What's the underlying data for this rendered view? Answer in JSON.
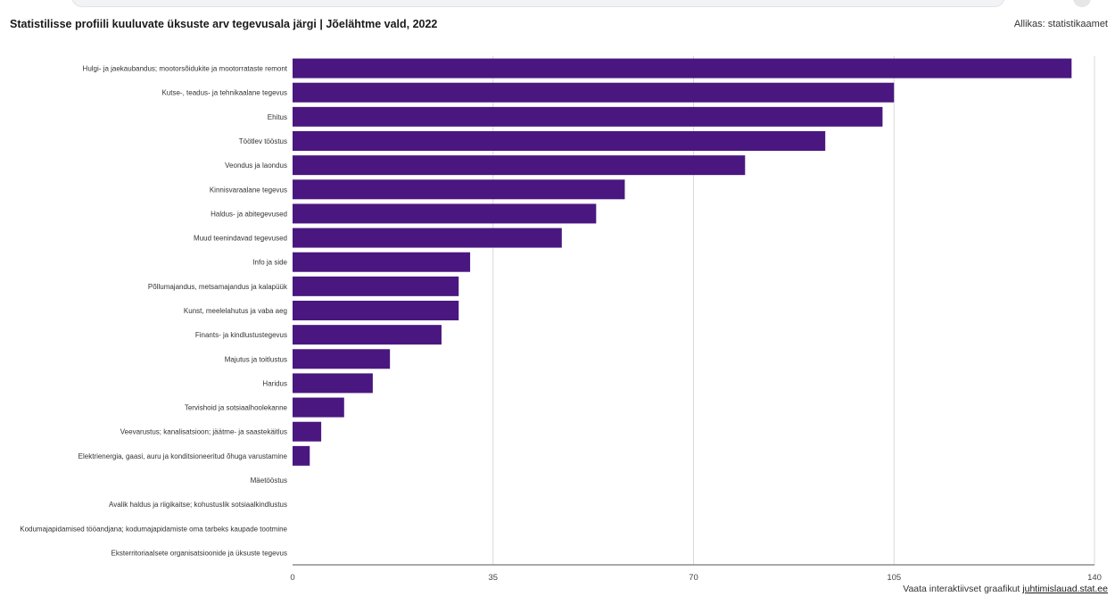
{
  "header": {
    "title": "Statistilisse profiili kuuluvate üksuste arv tegevusala järgi | Jõelähtme vald, 2022",
    "source": "Allikas: statistikaamet"
  },
  "footer": {
    "text": "Vaata interaktiivset graafikut",
    "link_text": "juhtimislauad.stat.ee"
  },
  "colors": {
    "bar": "#4a1780",
    "grid": "#d9d9d9",
    "axis": "#555555"
  },
  "chart_data": {
    "type": "bar",
    "orientation": "horizontal",
    "title": "Statistilisse profiili kuuluvate üksuste arv tegevusala järgi | Jõelähtme vald, 2022",
    "xlim": [
      0,
      140
    ],
    "xticks": [
      0,
      35,
      70,
      105,
      140
    ],
    "grid": true,
    "categories": [
      "Hulgi- ja jaekaubandus; mootorsõidukite ja mootorrataste remont",
      "Kutse-, teadus- ja tehnikaalane tegevus",
      "Ehitus",
      "Töötlev tööstus",
      "Veondus ja laondus",
      "Kinnisvaraalane tegevus",
      "Haldus- ja abitegevused",
      "Muud teenindavad tegevused",
      "Info ja side",
      "Põllumajandus, metsamajandus ja kalapüük",
      "Kunst, meelelahutus ja vaba aeg",
      "Finants- ja kindlustustegevus",
      "Majutus ja toitlustus",
      "Haridus",
      "Tervishoid ja sotsiaalhoolekanne",
      "Veevarustus; kanalisatsioon; jäätme- ja saastekäitlus",
      "Elektrienergia, gaasi, auru ja konditsioneeritud õhuga varustamine",
      "Mäetööstus",
      "Avalik haldus ja riigikaitse; kohustuslik sotsiaalkindlustus",
      "Kodumajapidamised tööandjana; kodumajapidamiste oma tarbeks kaupade tootmine",
      "Eksterritoriaalsete organisatsioonide ja üksuste tegevus"
    ],
    "values": [
      136,
      105,
      103,
      93,
      79,
      58,
      53,
      47,
      31,
      29,
      29,
      26,
      17,
      14,
      9,
      5,
      3,
      0,
      0,
      0,
      0
    ]
  }
}
